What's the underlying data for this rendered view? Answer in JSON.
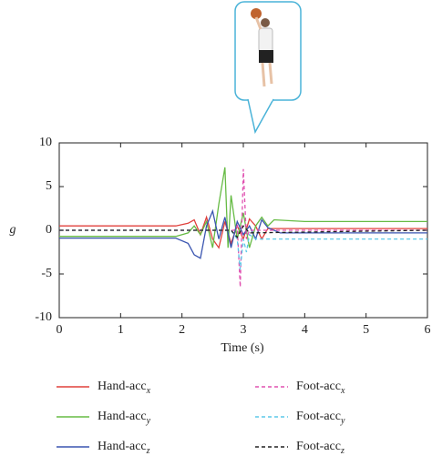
{
  "chart_data": {
    "type": "line",
    "xlabel": "Time (s)",
    "ylabel": "g",
    "xlim": [
      0,
      6
    ],
    "xticks": [
      0,
      1,
      2,
      3,
      4,
      5,
      6
    ],
    "ylim": [
      -10,
      10
    ],
    "yticks": [
      -10,
      -5,
      0,
      5,
      10
    ],
    "series": [
      {
        "name": "Hand-acc",
        "name_sub": "x",
        "color": "#e0403c",
        "dashed": false,
        "x": [
          0,
          1,
          1.9,
          2.1,
          2.2,
          2.3,
          2.4,
          2.5,
          2.6,
          2.7,
          2.8,
          2.9,
          3.0,
          3.1,
          3.2,
          3.3,
          3.4,
          3.5,
          4,
          6
        ],
        "values": [
          0.5,
          0.5,
          0.5,
          0.8,
          1.2,
          -0.5,
          1.5,
          -1,
          -2,
          1,
          -1.5,
          0.5,
          -1,
          1.3,
          0.5,
          -1,
          0.2,
          0.2,
          0.2,
          0.2
        ]
      },
      {
        "name": "Hand-acc",
        "name_sub": "y",
        "color": "#66bb44",
        "dashed": false,
        "x": [
          0,
          1.9,
          2.1,
          2.2,
          2.3,
          2.4,
          2.5,
          2.6,
          2.7,
          2.75,
          2.8,
          2.9,
          3.0,
          3.1,
          3.2,
          3.3,
          3.4,
          3.5,
          4,
          6
        ],
        "values": [
          -0.7,
          -0.7,
          -0.3,
          0.5,
          -0.5,
          1,
          -2,
          3,
          7.2,
          -2,
          4,
          -1,
          2,
          -2,
          0.5,
          1.5,
          0.5,
          1.2,
          1,
          1
        ]
      },
      {
        "name": "Hand-acc",
        "name_sub": "z",
        "color": "#3a55b0",
        "dashed": false,
        "x": [
          0,
          1.9,
          2.1,
          2.2,
          2.3,
          2.4,
          2.5,
          2.6,
          2.7,
          2.8,
          2.9,
          3.0,
          3.1,
          3.2,
          3.3,
          3.4,
          3.6,
          4,
          6
        ],
        "values": [
          -0.9,
          -0.9,
          -1.5,
          -2.8,
          -3.2,
          0.5,
          2.2,
          -1,
          1.5,
          -2,
          1,
          -0.5,
          0.5,
          -1,
          1.2,
          0.3,
          -0.3,
          -0.3,
          -0.3
        ]
      },
      {
        "name": "Foot-acc",
        "name_sub": "x",
        "color": "#e050b0",
        "dashed": true,
        "x": [
          0,
          2.85,
          2.9,
          2.95,
          3.0,
          3.05,
          3.1,
          6
        ],
        "values": [
          0,
          0,
          0.5,
          -6.5,
          7,
          -1,
          0,
          0
        ]
      },
      {
        "name": "Foot-acc",
        "name_sub": "y",
        "color": "#5bc8e8",
        "dashed": true,
        "x": [
          0,
          2.8,
          2.9,
          2.95,
          3.0,
          3.05,
          3.1,
          3.2,
          3.5,
          6
        ],
        "values": [
          0,
          0,
          -1,
          -4.5,
          -1,
          -2.5,
          -0.5,
          -1,
          -1,
          -1
        ]
      },
      {
        "name": "Foot-acc",
        "name_sub": "z",
        "color": "#222222",
        "dashed": true,
        "x": [
          0,
          2.8,
          2.9,
          3.0,
          3.1,
          6
        ],
        "values": [
          0,
          0,
          -0.8,
          0.5,
          -0.3,
          0
        ]
      }
    ]
  }
}
